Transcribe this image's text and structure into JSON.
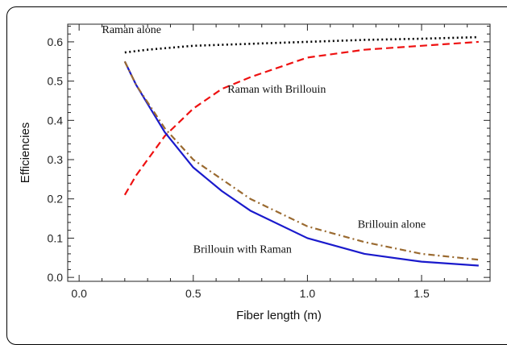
{
  "chart_data": {
    "type": "line",
    "xlabel": "Fiber length (m)",
    "ylabel": "Efficiencies",
    "xlim": [
      -0.05,
      1.8
    ],
    "ylim": [
      -0.01,
      0.645
    ],
    "xticks": [
      0.0,
      0.5,
      1.0,
      1.5
    ],
    "xtick_labels": [
      "0.0",
      "0.5",
      "1.0",
      "1.5"
    ],
    "yticks": [
      0.0,
      0.1,
      0.2,
      0.3,
      0.4,
      0.5,
      0.6
    ],
    "ytick_labels": [
      "0.0",
      "0.1",
      "0.2",
      "0.3",
      "0.4",
      "0.5",
      "0.6"
    ],
    "grid": false,
    "series": [
      {
        "name": "Raman alone",
        "color": "#000000",
        "dash": "dotted",
        "x": [
          0.2,
          0.3,
          0.5,
          0.75,
          1.0,
          1.25,
          1.5,
          1.75
        ],
        "y": [
          0.573,
          0.58,
          0.59,
          0.595,
          0.6,
          0.605,
          0.608,
          0.612
        ]
      },
      {
        "name": "Raman with Brillouin",
        "color": "#ee1111",
        "dash": "dashed",
        "x": [
          0.2,
          0.25,
          0.375,
          0.5,
          0.625,
          0.75,
          1.0,
          1.25,
          1.5,
          1.75
        ],
        "y": [
          0.21,
          0.26,
          0.36,
          0.43,
          0.48,
          0.51,
          0.56,
          0.58,
          0.59,
          0.6
        ]
      },
      {
        "name": "Brillouin with Raman",
        "color": "#1a1acc",
        "dash": "solid",
        "x": [
          0.2,
          0.25,
          0.375,
          0.5,
          0.625,
          0.75,
          1.0,
          1.25,
          1.5,
          1.75
        ],
        "y": [
          0.55,
          0.49,
          0.37,
          0.28,
          0.22,
          0.17,
          0.1,
          0.06,
          0.04,
          0.03
        ]
      },
      {
        "name": "Brillouin alone",
        "color": "#9a6a30",
        "dash": "dashdot",
        "x": [
          0.2,
          0.25,
          0.375,
          0.5,
          0.625,
          0.75,
          1.0,
          1.25,
          1.5,
          1.75
        ],
        "y": [
          0.55,
          0.49,
          0.38,
          0.3,
          0.25,
          0.2,
          0.13,
          0.09,
          0.06,
          0.045
        ]
      }
    ],
    "annotations": [
      {
        "text": "Raman alone",
        "x": 0.1,
        "y": 0.622
      },
      {
        "text": "Raman with Brillouin",
        "x": 0.65,
        "y": 0.47
      },
      {
        "text": "Brillouin alone",
        "x": 1.22,
        "y": 0.127
      },
      {
        "text": "Brillouin with Raman",
        "x": 0.5,
        "y": 0.063
      }
    ]
  }
}
